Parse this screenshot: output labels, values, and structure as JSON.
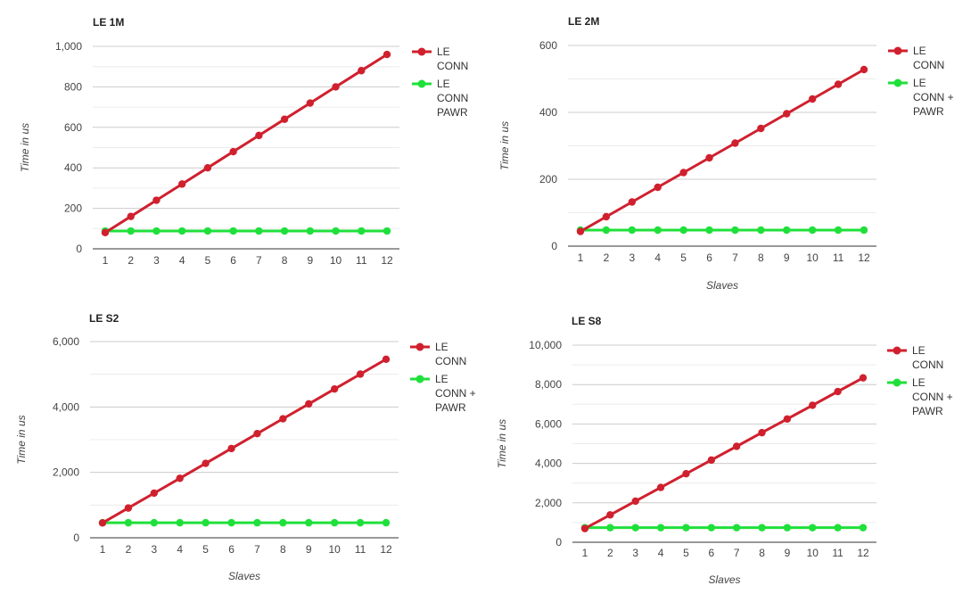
{
  "chart_data": [
    {
      "type": "line",
      "title": "LE 1M",
      "xlabel": "",
      "ylabel": "Time in us",
      "ylim": [
        0,
        1000
      ],
      "yticks": [
        0,
        200,
        400,
        600,
        800,
        1000
      ],
      "ytick_labels": [
        "0",
        "200",
        "400",
        "600",
        "800",
        "1,000"
      ],
      "x": [
        1,
        2,
        3,
        4,
        5,
        6,
        7,
        8,
        9,
        10,
        11,
        12
      ],
      "grid": true,
      "legend": "right",
      "series": [
        {
          "name": "LE CONN",
          "legend_lines": [
            "LE",
            "CONN"
          ],
          "color": "#d0202e",
          "values": [
            80,
            160,
            240,
            320,
            400,
            480,
            560,
            640,
            720,
            800,
            880,
            960
          ]
        },
        {
          "name": "LE CONN PAWR",
          "legend_lines": [
            "LE",
            "CONN",
            "PAWR"
          ],
          "color": "#1fe03a",
          "values": [
            88,
            88,
            88,
            88,
            88,
            88,
            88,
            88,
            88,
            88,
            88,
            88
          ]
        }
      ]
    },
    {
      "type": "line",
      "title": "LE 2M",
      "xlabel": "Slaves",
      "ylabel": "Time in us",
      "ylim": [
        0,
        600
      ],
      "yticks": [
        0,
        200,
        400,
        600
      ],
      "ytick_labels": [
        "0",
        "200",
        "400",
        "600"
      ],
      "x": [
        1,
        2,
        3,
        4,
        5,
        6,
        7,
        8,
        9,
        10,
        11,
        12
      ],
      "grid": true,
      "legend": "right",
      "series": [
        {
          "name": "LE CONN",
          "legend_lines": [
            "LE",
            "CONN"
          ],
          "color": "#d0202e",
          "values": [
            44,
            88,
            132,
            176,
            220,
            264,
            308,
            352,
            396,
            440,
            484,
            528
          ]
        },
        {
          "name": "LE CONN + PAWR",
          "legend_lines": [
            "LE",
            "CONN +",
            "PAWR"
          ],
          "color": "#1fe03a",
          "values": [
            48,
            48,
            48,
            48,
            48,
            48,
            48,
            48,
            48,
            48,
            48,
            48
          ]
        }
      ]
    },
    {
      "type": "line",
      "title": "LE S2",
      "xlabel": "Slaves",
      "ylabel": "Time in us",
      "ylim": [
        0,
        6000
      ],
      "yticks": [
        0,
        2000,
        4000,
        6000
      ],
      "ytick_labels": [
        "0",
        "2,000",
        "4,000",
        "6,000"
      ],
      "x": [
        1,
        2,
        3,
        4,
        5,
        6,
        7,
        8,
        9,
        10,
        11,
        12
      ],
      "grid": true,
      "legend": "right",
      "series": [
        {
          "name": "LE CONN",
          "legend_lines": [
            "LE",
            "CONN"
          ],
          "color": "#d0202e",
          "values": [
            455,
            910,
            1365,
            1820,
            2275,
            2730,
            3185,
            3640,
            4095,
            4550,
            5005,
            5460
          ]
        },
        {
          "name": "LE CONN + PAWR",
          "legend_lines": [
            "LE",
            "CONN +",
            "PAWR"
          ],
          "color": "#1fe03a",
          "values": [
            460,
            460,
            460,
            460,
            460,
            460,
            460,
            460,
            460,
            460,
            460,
            460
          ]
        }
      ]
    },
    {
      "type": "line",
      "title": "LE S8",
      "xlabel": "Slaves",
      "ylabel": "Time in us",
      "ylim": [
        0,
        10000
      ],
      "yticks": [
        0,
        2000,
        4000,
        6000,
        8000,
        10000
      ],
      "ytick_labels": [
        "0",
        "2,000",
        "4,000",
        "6,000",
        "8,000",
        "10,000"
      ],
      "x": [
        1,
        2,
        3,
        4,
        5,
        6,
        7,
        8,
        9,
        10,
        11,
        12
      ],
      "grid": true,
      "legend": "right",
      "series": [
        {
          "name": "LE CONN",
          "legend_lines": [
            "LE",
            "CONN"
          ],
          "color": "#d0202e",
          "values": [
            695,
            1390,
            2085,
            2780,
            3475,
            4170,
            4865,
            5560,
            6255,
            6950,
            7645,
            8340
          ]
        },
        {
          "name": "LE CONN + PAWR",
          "legend_lines": [
            "LE",
            "CONN +",
            "PAWR"
          ],
          "color": "#1fe03a",
          "values": [
            740,
            740,
            740,
            740,
            740,
            740,
            740,
            740,
            740,
            740,
            740,
            740
          ]
        }
      ]
    }
  ]
}
